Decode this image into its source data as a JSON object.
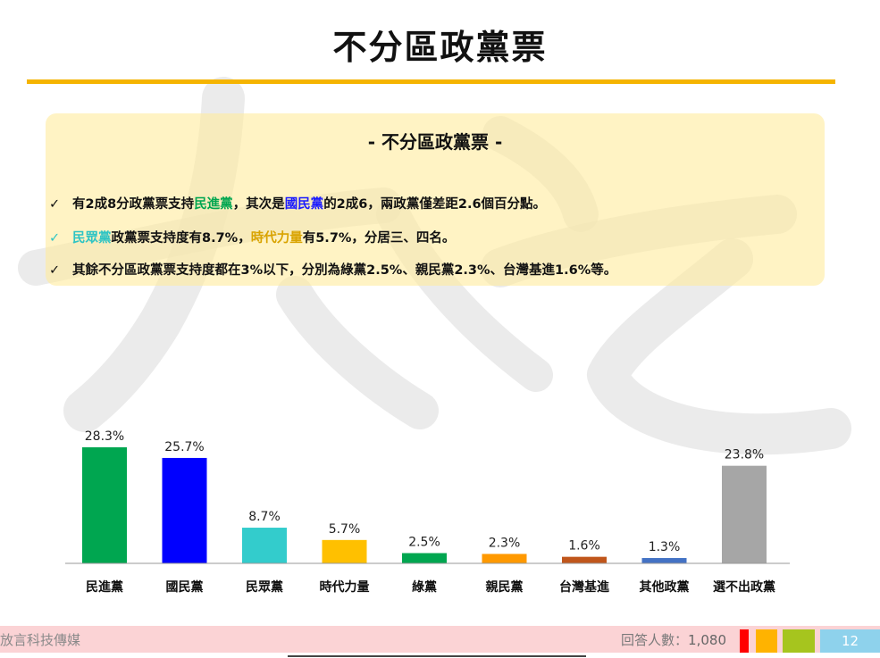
{
  "page": {
    "title": "不分區政黨票"
  },
  "summary": {
    "heading": "- 不分區政黨票 -",
    "check_glyph": "✓",
    "bullet1": {
      "p1": "有2成8分政黨票支持",
      "p2": "民進黨",
      "p3": "，其次是",
      "p4": "國民黨",
      "p5": "的2成6，兩政黨僅差距2.6個百分點。"
    },
    "bullet2": {
      "p1": "民眾黨",
      "p2": "政黨票支持度有8.7%，",
      "p3": "時代力量",
      "p4": "有5.7%，分居三、四名。"
    },
    "bullet3": {
      "p1": "其餘不分區政黨票支持度都在3%以下，分別為綠黨2.5%、親民黨2.3%、台灣基進1.6%等。"
    }
  },
  "chart_data": {
    "type": "bar",
    "title": "不分區政黨票",
    "categories": [
      "民進黨",
      "國民黨",
      "民眾黨",
      "時代力量",
      "綠黨",
      "親民黨",
      "台灣基進",
      "其他政黨",
      "選不出政黨"
    ],
    "values": [
      28.3,
      25.7,
      8.7,
      5.7,
      2.5,
      2.3,
      1.6,
      1.3,
      23.8
    ],
    "value_labels": [
      "28.3%",
      "25.7%",
      "8.7%",
      "5.7%",
      "2.5%",
      "2.3%",
      "1.6%",
      "1.3%",
      "23.8%"
    ],
    "colors": [
      "#00a650",
      "#0000ff",
      "#33cccc",
      "#ffc000",
      "#00a650",
      "#ff9900",
      "#c0561b",
      "#4472c4",
      "#a6a6a6"
    ],
    "unit": "%",
    "xlabel": "",
    "ylabel": "",
    "ylim": [
      0,
      30
    ],
    "grid": false,
    "legend": "none"
  },
  "footer": {
    "left_text": "放言科技傳媒",
    "respondents_label": "回答人數：",
    "respondents_value": "1,080",
    "page_number": "12",
    "accent_colors": [
      "#ff0000",
      "#ffb300",
      "#a6c51e"
    ]
  }
}
